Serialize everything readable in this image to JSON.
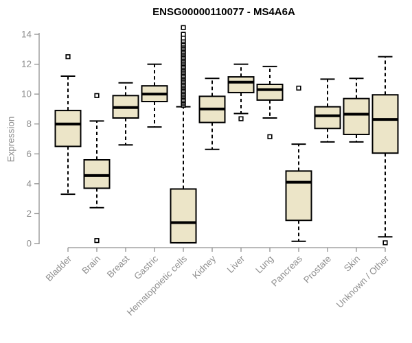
{
  "chart_data": {
    "type": "boxplot",
    "title": "ENSG00000110077 - MS4A6A",
    "ylabel": "Expression",
    "ylim": [
      0,
      14
    ],
    "yticks": [
      0,
      2,
      4,
      6,
      8,
      10,
      12,
      14
    ],
    "grid": false,
    "legend": false,
    "categories": [
      "Bladder",
      "Brain",
      "Breast",
      "Gastric",
      "Hematopoietic cells",
      "Kidney",
      "Liver",
      "Lung",
      "Pancreas",
      "Prostate",
      "Skin",
      "Unknown / Other"
    ],
    "boxes": [
      {
        "category": "Bladder",
        "low": 3.3,
        "q1": 6.5,
        "median": 8.0,
        "q3": 8.9,
        "high": 11.2,
        "outliers": [
          12.5
        ]
      },
      {
        "category": "Brain",
        "low": 2.4,
        "q1": 3.7,
        "median": 4.55,
        "q3": 5.6,
        "high": 8.2,
        "outliers": [
          9.9,
          0.2
        ]
      },
      {
        "category": "Breast",
        "low": 6.6,
        "q1": 8.4,
        "median": 9.1,
        "q3": 9.9,
        "high": 10.75,
        "outliers": []
      },
      {
        "category": "Gastric",
        "low": 7.8,
        "q1": 9.5,
        "median": 10.0,
        "q3": 10.55,
        "high": 12.0,
        "outliers": []
      },
      {
        "category": "Hematopoietic cells",
        "low": 0.05,
        "q1": 0.05,
        "median": 1.4,
        "q3": 3.65,
        "high": 9.15,
        "outliers": [
          9.25,
          9.35,
          9.45,
          9.55,
          9.65,
          9.75,
          9.85,
          9.95,
          10.05,
          10.15,
          10.25,
          10.35,
          10.45,
          10.55,
          10.65,
          10.75,
          10.85,
          10.95,
          11.05,
          11.15,
          11.25,
          11.35,
          11.45,
          11.55,
          11.65,
          11.75,
          11.85,
          11.95,
          12.05,
          12.15,
          12.25,
          12.35,
          12.45,
          12.55,
          12.65,
          12.75,
          12.85,
          12.95,
          13.05,
          13.15,
          13.25,
          13.35,
          13.5,
          13.6,
          13.75,
          14.0,
          14.45
        ]
      },
      {
        "category": "Kidney",
        "low": 6.3,
        "q1": 8.1,
        "median": 9.0,
        "q3": 9.85,
        "high": 11.05,
        "outliers": []
      },
      {
        "category": "Liver",
        "low": 8.7,
        "q1": 10.1,
        "median": 10.8,
        "q3": 11.15,
        "high": 12.0,
        "outliers": [
          8.35
        ]
      },
      {
        "category": "Lung",
        "low": 8.4,
        "q1": 9.6,
        "median": 10.3,
        "q3": 10.65,
        "high": 11.85,
        "outliers": [
          7.15
        ]
      },
      {
        "category": "Pancreas",
        "low": 0.15,
        "q1": 1.55,
        "median": 4.1,
        "q3": 4.85,
        "high": 6.65,
        "outliers": [
          10.4
        ]
      },
      {
        "category": "Prostate",
        "low": 6.8,
        "q1": 7.7,
        "median": 8.55,
        "q3": 9.15,
        "high": 11.0,
        "outliers": []
      },
      {
        "category": "Skin",
        "low": 6.8,
        "q1": 7.3,
        "median": 8.65,
        "q3": 9.7,
        "high": 11.05,
        "outliers": []
      },
      {
        "category": "Unknown / Other",
        "low": 0.45,
        "q1": 6.05,
        "median": 8.3,
        "q3": 9.95,
        "high": 12.5,
        "outliers": [
          0.05
        ]
      }
    ],
    "style": {
      "box_fill": "#ece5c8",
      "box_border": "#000000",
      "median_color": "#000000",
      "whisker_style": "dashed",
      "outlier_marker": "open-square",
      "axis_color": "#909090",
      "label_color": "#909090",
      "title_color": "#000000",
      "background": "#ffffff"
    }
  }
}
